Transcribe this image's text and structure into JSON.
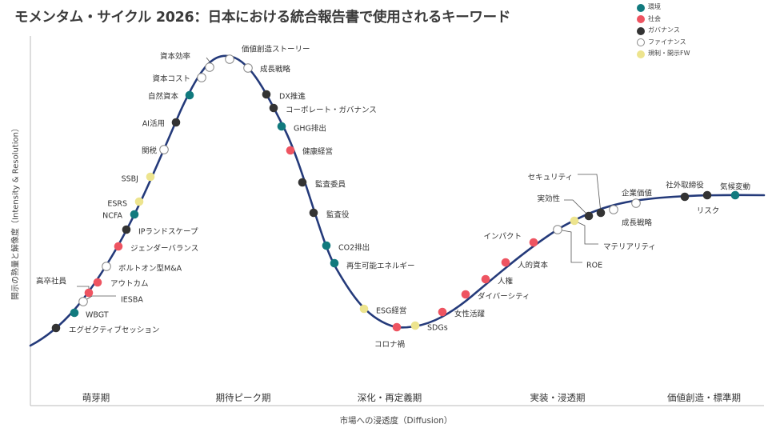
{
  "title": "モメンタム・サイクル 2026：日本における統合報告書で使用されるキーワード",
  "y_axis_label": "開示の熟量と解像度（Intensity & Resolution）",
  "x_axis_label": "市場への浸透度（Diffusion）",
  "phases": [
    "萌芽期",
    "期待ピーク期",
    "深化・再定義期",
    "実装・浸透期",
    "価値創造・標準期"
  ],
  "colors": {
    "環境": "#117a7e",
    "社会": "#ee5461",
    "ガバナンス": "#333333",
    "ファイナンス": "#ffffff",
    "規制・開示FW": "#ede48e",
    "curve": "#243a7a"
  },
  "legend": [
    {
      "category": "環境",
      "label": "環境"
    },
    {
      "category": "社会",
      "label": "社会"
    },
    {
      "category": "ガバナンス",
      "label": "ガバナンス"
    },
    {
      "category": "ファイナンス",
      "label": "ファイナンス"
    },
    {
      "category": "規制・開示FW",
      "label": "規制・開示FW"
    }
  ],
  "keywords": [
    {
      "label": "エグゼクティブセッション",
      "category": "ガバナンス"
    },
    {
      "label": "WBGT",
      "category": "環境"
    },
    {
      "label": "IESBA",
      "category": "ファイナンス"
    },
    {
      "label": "高卒社員",
      "category": "社会"
    },
    {
      "label": "アウトカム",
      "category": "社会"
    },
    {
      "label": "ボルトオン型M&A",
      "category": "ファイナンス"
    },
    {
      "label": "ジェンダーバランス",
      "category": "社会"
    },
    {
      "label": "IPランドスケープ",
      "category": "ガバナンス"
    },
    {
      "label": "NCFA",
      "category": "環境"
    },
    {
      "label": "ESRS",
      "category": "規制・開示FW"
    },
    {
      "label": "SSBJ",
      "category": "規制・開示FW"
    },
    {
      "label": "関税",
      "category": "ファイナンス"
    },
    {
      "label": "AI活用",
      "category": "ガバナンス"
    },
    {
      "label": "自然資本",
      "category": "環境"
    },
    {
      "label": "資本コスト",
      "category": "ファイナンス"
    },
    {
      "label": "資本効率",
      "category": "ファイナンス"
    },
    {
      "label": "価値創造ストーリー",
      "category": "ファイナンス"
    },
    {
      "label": "成長戦略",
      "category": "ファイナンス"
    },
    {
      "label": "DX推進",
      "category": "ガバナンス"
    },
    {
      "label": "コーポレート・ガバナンス",
      "category": "ガバナンス"
    },
    {
      "label": "GHG排出",
      "category": "環境"
    },
    {
      "label": "健康経営",
      "category": "社会"
    },
    {
      "label": "監査委員",
      "category": "ガバナンス"
    },
    {
      "label": "監査役",
      "category": "ガバナンス"
    },
    {
      "label": "CO2排出",
      "category": "環境"
    },
    {
      "label": "再生可能エネルギー",
      "category": "環境"
    },
    {
      "label": "ESG経営",
      "category": "規制・開示FW"
    },
    {
      "label": "コロナ禍",
      "category": "社会"
    },
    {
      "label": "SDGs",
      "category": "規制・開示FW"
    },
    {
      "label": "女性活躍",
      "category": "社会"
    },
    {
      "label": "ダイバーシティ",
      "category": "社会"
    },
    {
      "label": "人権",
      "category": "社会"
    },
    {
      "label": "人的資本",
      "category": "社会"
    },
    {
      "label": "インパクト",
      "category": "社会"
    },
    {
      "label": "ROE",
      "category": "ファイナンス"
    },
    {
      "label": "マテリアリティ",
      "category": "規制・開示FW"
    },
    {
      "label": "実効性",
      "category": "ガバナンス"
    },
    {
      "label": "セキュリティ",
      "category": "ガバナンス"
    },
    {
      "label": "成長戦略",
      "category": "ファイナンス"
    },
    {
      "label": "企業価値",
      "category": "ファイナンス"
    },
    {
      "label": "社外取締役",
      "category": "ガバナンス"
    },
    {
      "label": "リスク",
      "category": "ガバナンス"
    },
    {
      "label": "気候変動",
      "category": "環境"
    }
  ]
}
